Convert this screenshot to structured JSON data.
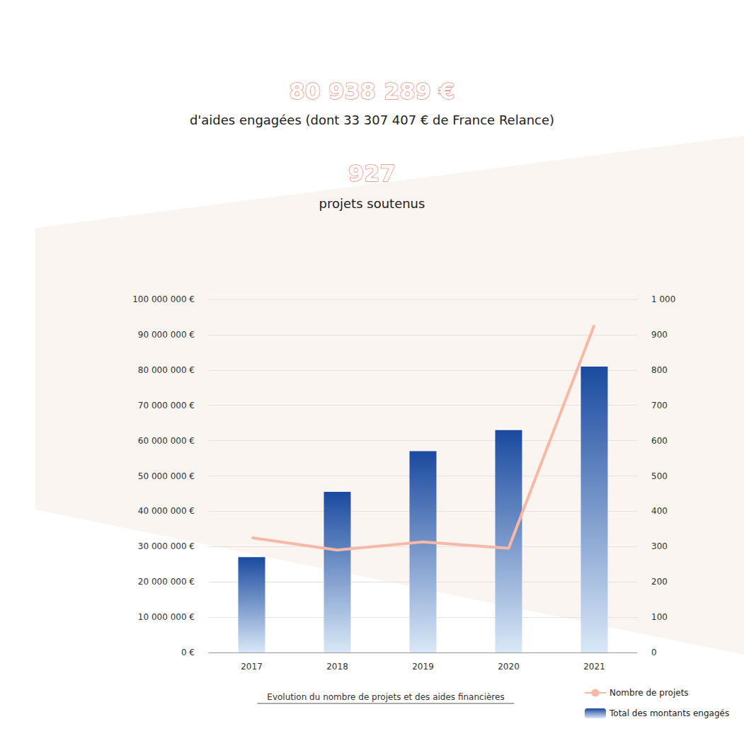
{
  "chart_data": {
    "type": "bar",
    "title": "80 938 289 €",
    "subtitle": "d'aides engagées (dont 33 307 407 € de France Relance)",
    "annotations": [
      "927",
      "projets soutenus",
      "Evolution du nombre de projets et des aides financières"
    ],
    "categories": [
      "2017",
      "2018",
      "2019",
      "2020",
      "2021"
    ],
    "series": [
      {
        "name": "Nombre de projets",
        "type": "line",
        "color": "#f7b9a6",
        "axis": "y2",
        "values": [
          325,
          290,
          313,
          295,
          927
        ]
      },
      {
        "name": "Total des montants engagés",
        "type": "bar",
        "color": "#1a4a9f",
        "values": [
          27000000,
          45500000,
          57000000,
          63000000,
          80938289
        ]
      }
    ],
    "ylim": [
      0,
      100000000
    ],
    "yticks": [
      {
        "value": 0,
        "label": "0 €"
      },
      {
        "value": 10000000,
        "label": "10 000 000 €"
      },
      {
        "value": 20000000,
        "label": "20 000 000 €"
      },
      {
        "value": 30000000,
        "label": "30 000 000 €"
      },
      {
        "value": 40000000,
        "label": "40 000 000 €"
      },
      {
        "value": 50000000,
        "label": "50 000 000 €"
      },
      {
        "value": 60000000,
        "label": "60 000 000 €"
      },
      {
        "value": 70000000,
        "label": "70 000 000 €"
      },
      {
        "value": 80000000,
        "label": "80 000 000 €"
      },
      {
        "value": 90000000,
        "label": "90 000 000 €"
      },
      {
        "value": 100000000,
        "label": "100 000 000 €"
      }
    ],
    "y2lim": [
      0,
      1000
    ],
    "y2ticks": [
      0,
      100,
      200,
      300,
      400,
      500,
      600,
      700,
      800,
      900,
      {
        "value": 1000,
        "label": "1 000"
      }
    ],
    "grid": true,
    "legend": "bottom right"
  }
}
